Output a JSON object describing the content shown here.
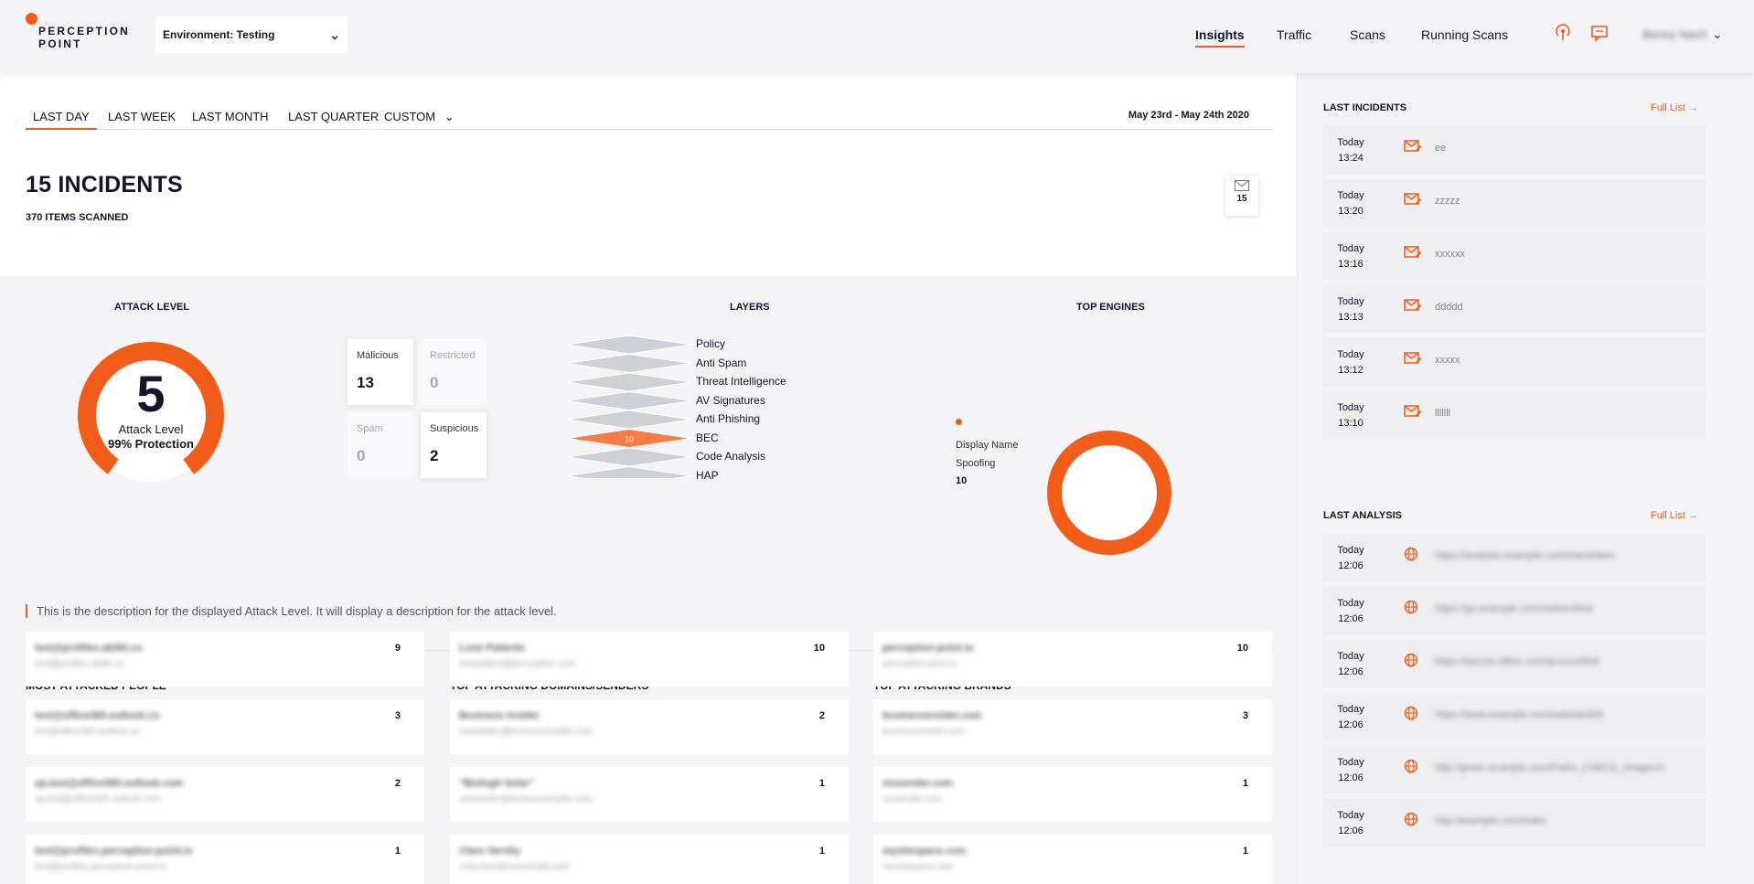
{
  "header": {
    "logo_line1": "PERCEPTION",
    "logo_line2": "POINT",
    "environment": "Environment: Testing",
    "nav": [
      "Insights",
      "Traffic",
      "Scans",
      "Running Scans"
    ],
    "active_nav": "Insights",
    "user_name": "Benny Nach"
  },
  "filters": {
    "tabs": [
      "LAST DAY",
      "LAST WEEK",
      "LAST MONTH",
      "LAST QUARTER",
      "CUSTOM"
    ],
    "active_tab": "LAST DAY",
    "date_range": "May 23rd - May 24th 2020"
  },
  "summary": {
    "incidents_title": "15 INCIDENTS",
    "items_scanned": "370 ITEMS SCANNED",
    "mail_count": "15"
  },
  "attack_level": {
    "heading": "ATTACK LEVEL",
    "level": "5",
    "label": "Attack Level",
    "protection": "99% Protection",
    "gauge_fraction": 0.8,
    "cards": [
      {
        "label": "Malicious",
        "value": "13"
      },
      {
        "label": "Restricted",
        "value": "0"
      },
      {
        "label": "Spam",
        "value": "0"
      },
      {
        "label": "Suspicious",
        "value": "2"
      }
    ],
    "description": "This is the description for the displayed Attack Level. It will display a description for the attack level."
  },
  "layers": {
    "heading": "LAYERS",
    "items": [
      "Policy",
      "Anti Spam",
      "Threat Intelligence",
      "AV Signatures",
      "Anti Phishing",
      "BEC",
      "Code Analysis",
      "HAP"
    ],
    "highlight_value": "10"
  },
  "top_engines": {
    "heading": "TOP ENGINES",
    "legend_line1": "Display Name",
    "legend_line2": "Spoofing",
    "value": "10",
    "accent": "#f25c19"
  },
  "lists": {
    "people": {
      "heading": "MOST ATTACKED PEOPLE",
      "rows": [
        {
          "name": "test@profiles.abiliti.co",
          "sub": "test@profiles.abiliti.co",
          "count": "9"
        },
        {
          "name": "test@office365.outlook.co",
          "sub": "test@office365.outlook.co",
          "count": "3"
        },
        {
          "name": "qa.test@office365.outlook.com",
          "sub": "qa.test@office365.outlook.com",
          "count": "2"
        },
        {
          "name": "test@profiles.perception-point.io",
          "sub": "test@profiles.perception-point.io",
          "count": "1"
        }
      ]
    },
    "domains": {
      "heading": "TOP ATTACKING DOMAINS/SENDERS",
      "rows": [
        {
          "name": "Lone Patients",
          "sub": "lonepatient@perception.com",
          "count": "10"
        },
        {
          "name": "Business Insider",
          "sub": "newsletter@businessinsider.com",
          "count": "2"
        },
        {
          "name": "\"Biologit Solar\"",
          "sub": "newsletter@businessinsider.com",
          "count": "1"
        },
        {
          "name": "Clare Vernby",
          "sub": "cvbyclare@newsmails.com",
          "count": "1"
        }
      ]
    },
    "brands": {
      "heading": "TOP ATTACKING BRANDS",
      "rows": [
        {
          "name": "perception-point.io",
          "sub": "perception-point.io",
          "count": "10"
        },
        {
          "name": "businessinsider.com",
          "sub": "businessinsider.com",
          "count": "3"
        },
        {
          "name": "mssender.com",
          "sub": "mssender.com",
          "count": "1"
        },
        {
          "name": "mysitespace.com",
          "sub": "mysitespace.com",
          "count": "1"
        }
      ]
    }
  },
  "right_panel": {
    "incidents_heading": "LAST INCIDENTS",
    "analysis_heading": "LAST ANALYSIS",
    "full_list": "Full List →",
    "incidents": [
      {
        "day": "Today",
        "time": "13:24",
        "subject": "ee"
      },
      {
        "day": "Today",
        "time": "13:20",
        "subject": "zzzzz"
      },
      {
        "day": "Today",
        "time": "13:16",
        "subject": "xxxxxx"
      },
      {
        "day": "Today",
        "time": "13:13",
        "subject": "ddddd"
      },
      {
        "day": "Today",
        "time": "13:12",
        "subject": "xxxxx"
      },
      {
        "day": "Today",
        "time": "13:10",
        "subject": "lllllll"
      }
    ],
    "analysis": [
      {
        "day": "Today",
        "time": "12:06",
        "url": "https://analysis.example.com/check/item"
      },
      {
        "day": "Today",
        "time": "12:06",
        "url": "https://go.example.com/redirect/link"
      },
      {
        "day": "Today",
        "time": "12:06",
        "url": "https://secure.office.com/account/link"
      },
      {
        "day": "Today",
        "time": "12:06",
        "url": "https://www.example.com/website/link"
      },
      {
        "day": "Today",
        "time": "12:06",
        "url": "http://green.example.com/Paths_CHECK_ImageUrl"
      },
      {
        "day": "Today",
        "time": "12:06",
        "url": "http://example.com/index"
      }
    ]
  }
}
